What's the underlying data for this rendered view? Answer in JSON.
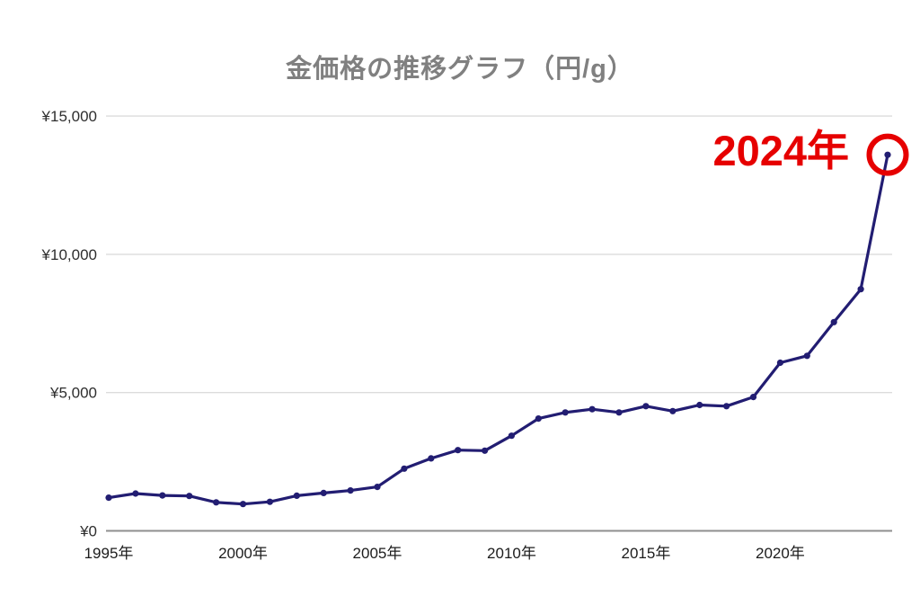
{
  "chart_data": {
    "type": "line",
    "title": "金価格の推移グラフ（円/g）",
    "xlabel": "",
    "ylabel": "",
    "x": [
      1995,
      1996,
      1997,
      1998,
      1999,
      2000,
      2001,
      2002,
      2003,
      2004,
      2005,
      2006,
      2007,
      2008,
      2009,
      2010,
      2011,
      2012,
      2013,
      2014,
      2015,
      2016,
      2017,
      2018,
      2019,
      2020,
      2021,
      2022,
      2023,
      2024
    ],
    "series": [
      {
        "name": "金価格（円/g）",
        "values": [
          1200,
          1350,
          1280,
          1260,
          1030,
          970,
          1050,
          1270,
          1370,
          1460,
          1590,
          2250,
          2620,
          2920,
          2900,
          3440,
          4060,
          4280,
          4400,
          4280,
          4510,
          4330,
          4550,
          4510,
          4840,
          6080,
          6330,
          7550,
          8740,
          13600
        ]
      }
    ],
    "ylim": [
      0,
      15000
    ],
    "y_ticks": [
      0,
      5000,
      10000,
      15000
    ],
    "y_tick_labels": [
      "¥0",
      "¥5,000",
      "¥10,000",
      "¥15,000"
    ],
    "x_tick_years": [
      1995,
      2000,
      2005,
      2010,
      2015,
      2020
    ],
    "x_tick_labels": [
      "1995年",
      "2000年",
      "2005年",
      "2010年",
      "2015年",
      "2020年"
    ],
    "grid": "horizontal-only",
    "legend_position": "none",
    "annotation": {
      "text": "2024年",
      "target_year": 2024,
      "target_value": 13600,
      "color": "#e60000",
      "shape": "circle-outline"
    },
    "colors": {
      "line": "#221d72",
      "marker": "#221d72",
      "gridline": "#dcdcdc",
      "axis_line": "#8f8f8f",
      "title": "#808080",
      "y_tick": "#2e2e2e",
      "x_tick": "#1c1c1c",
      "annotation_red": "#e60000",
      "background": "#ffffff"
    }
  }
}
